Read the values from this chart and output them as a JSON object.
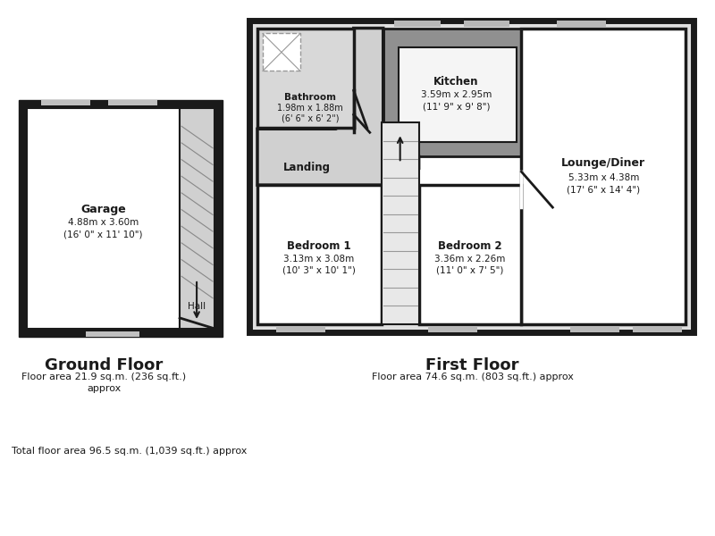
{
  "bg_color": "#ffffff",
  "wall_color": "#1a1a1a",
  "white": "#ffffff",
  "light_gray": "#d4d4d4",
  "mid_gray": "#a8a8a8",
  "dark_gray": "#888888",
  "window_gray": "#b8b8b8",
  "gf_title": "Ground Floor",
  "gf_area": "Floor area 21.9 sq.m. (236 sq.ft.)\napprox",
  "ff_title": "First Floor",
  "ff_area": "Floor area 74.6 sq.m. (803 sq.ft.) approx",
  "total_area": "Total floor area 96.5 sq.m. (1,039 sq.ft.) approx",
  "garage_label": "Garage",
  "garage_dim": "4.88m x 3.60m",
  "garage_dim2": "(16' 0\" x 11' 10\")",
  "hall_label": "Hall",
  "bathroom_label": "Bathroom",
  "bathroom_dim": "1.98m x 1.88m",
  "bathroom_dim2": "(6' 6\" x 6' 2\")",
  "landing_label": "Landing",
  "kitchen_label": "Kitchen",
  "kitchen_dim": "3.59m x 2.95m",
  "kitchen_dim2": "(11' 9\" x 9' 8\")",
  "lounge_label": "Lounge/Diner",
  "lounge_dim": "5.33m x 4.38m",
  "lounge_dim2": "(17' 6\" x 14' 4\")",
  "bed1_label": "Bedroom 1",
  "bed1_dim": "3.13m x 3.08m",
  "bed1_dim2": "(10' 3\" x 10' 1\")",
  "bed2_label": "Bedroom 2",
  "bed2_dim": "3.36m x 2.26m",
  "bed2_dim2": "(11' 0\" x 7' 5\")"
}
